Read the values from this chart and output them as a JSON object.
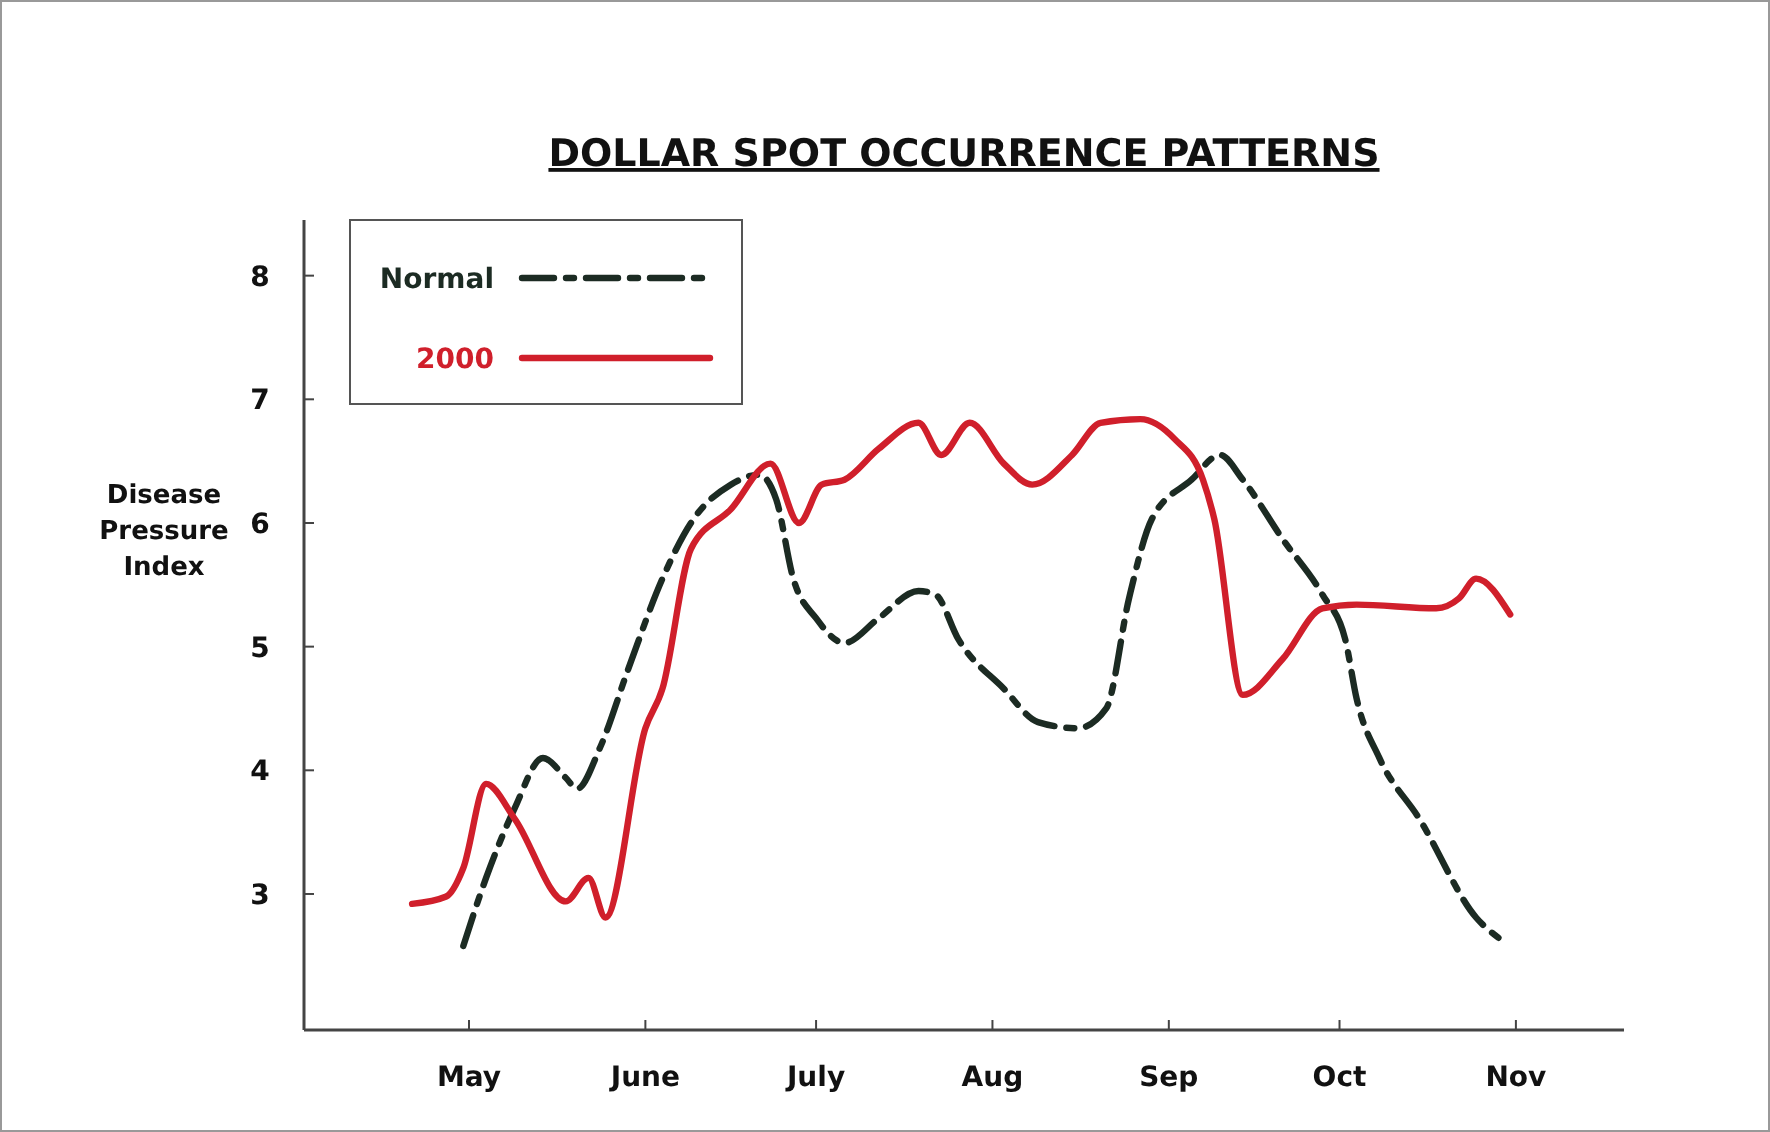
{
  "chart_data": {
    "type": "line",
    "title": "DOLLAR SPOT OCCURRENCE PATTERNS",
    "ylabel": "Disease Pressure Index",
    "xlim": [
      "--04-02",
      "--11-20"
    ],
    "xticks": [
      {
        "value": "--05-01",
        "label": "May"
      },
      {
        "value": "--06-01",
        "label": "June"
      },
      {
        "value": "--07-01",
        "label": "July"
      },
      {
        "value": "--08-01",
        "label": "Aug"
      },
      {
        "value": "--09-01",
        "label": "Sep"
      },
      {
        "value": "--10-01",
        "label": "Oct"
      },
      {
        "value": "--11-01",
        "label": "Nov"
      }
    ],
    "ylim": [
      1.9,
      8.45
    ],
    "yticks": [
      3,
      4,
      5,
      6,
      7,
      8
    ],
    "grid": false,
    "legend": "top left",
    "marker": "none",
    "series": [
      {
        "name": "Normal",
        "color": "#1c2b23",
        "line_style": "dashed",
        "x": [
          "--04-30",
          "--05-04",
          "--05-09",
          "--05-14",
          "--05-18",
          "--05-20",
          "--05-24",
          "--05-29",
          "--06-04",
          "--06-09",
          "--06-16",
          "--06-21",
          "--06-24",
          "--06-27",
          "--07-01",
          "--07-06",
          "--07-12",
          "--07-19",
          "--07-22",
          "--07-26",
          "--08-03",
          "--08-09",
          "--08-16",
          "--08-21",
          "--08-25",
          "--08-29",
          "--09-05",
          "--09-10",
          "--09-14",
          "--09-21",
          "--09-28",
          "--10-02",
          "--10-04",
          "--10-08",
          "--10-15",
          "--10-25",
          "--10-30"
        ],
        "values": [
          2.58,
          3.13,
          3.69,
          4.1,
          3.94,
          3.85,
          4.18,
          4.82,
          5.55,
          6.0,
          6.31,
          6.39,
          6.19,
          5.55,
          5.23,
          5.03,
          5.23,
          5.45,
          5.42,
          5.06,
          4.66,
          4.39,
          4.34,
          4.5,
          5.39,
          6.03,
          6.35,
          6.55,
          6.35,
          5.87,
          5.42,
          5.06,
          4.58,
          4.1,
          3.61,
          2.81,
          2.61
        ]
      },
      {
        "name": "2000",
        "color": "#d01f2b",
        "line_style": "solid",
        "x": [
          "--04-21",
          "--04-27",
          "--04-30",
          "--05-04",
          "--05-09",
          "--05-18",
          "--05-22",
          "--05-25",
          "--06-01",
          "--06-04",
          "--06-09",
          "--06-16",
          "--06-23",
          "--06-28",
          "--07-02",
          "--07-06",
          "--07-12",
          "--07-19",
          "--07-23",
          "--07-28",
          "--08-03",
          "--08-08",
          "--08-15",
          "--08-20",
          "--08-27",
          "--09-02",
          "--09-07",
          "--09-09",
          "--09-14",
          "--09-21",
          "--09-28",
          "--10-04",
          "--10-18",
          "--10-22",
          "--10-25",
          "--10-31"
        ],
        "values": [
          2.92,
          2.98,
          3.21,
          3.89,
          3.61,
          2.94,
          3.13,
          2.81,
          4.34,
          4.66,
          5.79,
          6.11,
          6.48,
          6.0,
          6.31,
          6.35,
          6.6,
          6.81,
          6.55,
          6.81,
          6.48,
          6.31,
          6.55,
          6.81,
          6.84,
          6.68,
          6.35,
          6.03,
          4.61,
          4.9,
          5.31,
          5.34,
          5.31,
          5.39,
          5.55,
          5.26
        ]
      }
    ]
  }
}
